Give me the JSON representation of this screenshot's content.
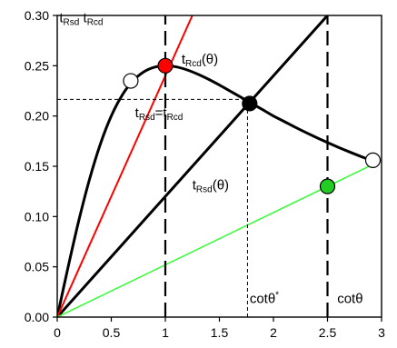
{
  "chart_data": {
    "type": "line",
    "xlim": [
      0,
      3
    ],
    "ylim": [
      0,
      0.3
    ],
    "x_ticks": [
      "0",
      "0.5",
      "1",
      "1.5",
      "2",
      "2.5",
      "3"
    ],
    "y_ticks": [
      "0.00",
      "0.05",
      "0.10",
      "0.15",
      "0.20",
      "0.25",
      "0.30"
    ],
    "x_tick_values": [
      0,
      0.5,
      1,
      1.5,
      2,
      2.5,
      3
    ],
    "y_tick_values": [
      0,
      0.05,
      0.1,
      0.15,
      0.2,
      0.25,
      0.3
    ],
    "grid": false,
    "series": [
      {
        "name": "tRcd(θ)",
        "color": "#000000",
        "style": "solid",
        "x": [
          0,
          0.1,
          0.2,
          0.3,
          0.4,
          0.5,
          0.6,
          0.7,
          0.8,
          0.9,
          1.0,
          1.1,
          1.2,
          1.3,
          1.4,
          1.5,
          1.6,
          1.7,
          1.8,
          1.9,
          2.0,
          2.1,
          2.2,
          2.3,
          2.4,
          2.5,
          2.6,
          2.7,
          2.8,
          2.9
        ],
        "y": [
          0,
          0.0495,
          0.0962,
          0.1376,
          0.1724,
          0.2,
          0.2206,
          0.2349,
          0.2439,
          0.2486,
          0.25,
          0.2489,
          0.2459,
          0.2416,
          0.2365,
          0.2308,
          0.2247,
          0.2186,
          0.2124,
          0.2063,
          0.2,
          0.1945,
          0.1889,
          0.1836,
          0.1785,
          0.1736,
          0.1689,
          0.1644,
          0.1601,
          0.156
        ]
      },
      {
        "name": "tRsd(θ)",
        "color": "#000000",
        "style": "solid",
        "x": [
          0,
          2.5
        ],
        "y": [
          0,
          0.3
        ]
      },
      {
        "name": "tRsd",
        "color": "#ff0000",
        "style": "solid",
        "x": [
          0,
          1.25
        ],
        "y": [
          0,
          0.3
        ]
      },
      {
        "name": "",
        "color": "#33ff33",
        "style": "solid",
        "x": [
          0,
          3
        ],
        "y": [
          0,
          0.156
        ]
      }
    ],
    "ref_lines": [
      {
        "kind": "v",
        "x": 1,
        "style": "longdash",
        "color": "#000000"
      },
      {
        "kind": "v",
        "x": 2.5,
        "style": "longdash",
        "color": "#000000"
      },
      {
        "kind": "v",
        "x": 1.76,
        "y_to": 0.2124,
        "style": "dotted",
        "color": "#000000"
      },
      {
        "kind": "h",
        "y": 0.2165,
        "x_from": 0,
        "x_to": 1.76,
        "style": "dotted",
        "color": "#000000"
      }
    ],
    "markers": [
      {
        "x": 0.68,
        "y": 0.2349,
        "fill": "#ffffff"
      },
      {
        "x": 1.0,
        "y": 0.25,
        "fill": "#ff0000"
      },
      {
        "x": 1.78,
        "y": 0.2124,
        "fill": "#000000"
      },
      {
        "x": 2.5,
        "y": 0.13,
        "fill": "#22cc22"
      },
      {
        "x": 2.92,
        "y": 0.156,
        "fill": "#ffffff"
      }
    ],
    "annotations": [
      {
        "id": "ann_top_left",
        "parts": [
          [
            "t",
            ""
          ],
          [
            "Rsd",
            "sub"
          ],
          [
            "  t",
            ""
          ],
          [
            "Rcd",
            "sub"
          ]
        ],
        "x": 0.02,
        "y": 0.293
      },
      {
        "id": "ann_rcd_theta",
        "parts": [
          [
            "t",
            ""
          ],
          [
            "Rcd",
            "sub"
          ],
          [
            "(θ)",
            ""
          ]
        ],
        "x": 1.15,
        "y": 0.252
      },
      {
        "id": "ann_equal",
        "parts": [
          [
            "t",
            ""
          ],
          [
            "Rsd",
            "sub"
          ],
          [
            "=t",
            ""
          ],
          [
            "Rcd",
            "sub"
          ]
        ],
        "x": 0.72,
        "y": 0.199
      },
      {
        "id": "ann_rsd_theta",
        "parts": [
          [
            "t",
            ""
          ],
          [
            "Rsd",
            "sub"
          ],
          [
            "(θ)",
            ""
          ]
        ],
        "x": 1.25,
        "y": 0.127
      },
      {
        "id": "ann_cot_star",
        "parts": [
          [
            "cotθ",
            ""
          ],
          [
            "*",
            "sup"
          ]
        ],
        "x": 1.78,
        "y": 0.014
      },
      {
        "id": "ann_cot",
        "parts": [
          [
            "cotθ",
            ""
          ]
        ],
        "x": 2.59,
        "y": 0.014
      }
    ]
  }
}
